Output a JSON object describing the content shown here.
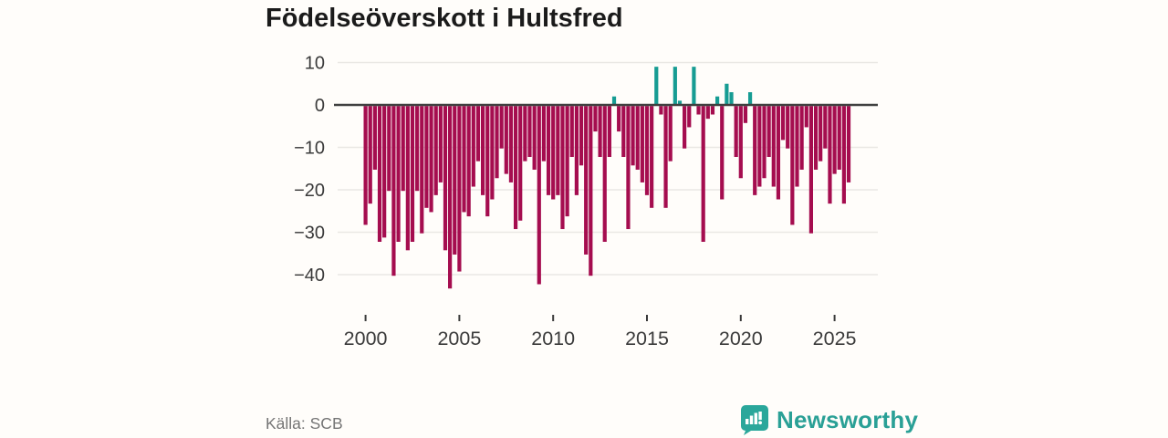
{
  "title": "Födelseöverskott i Hultsfred",
  "source": "Källa: SCB",
  "brand": {
    "name": "Newsworthy",
    "color": "#2aa096",
    "icon": "bar-chart-bubble-icon"
  },
  "colors": {
    "negative_bar": "#a50d4f",
    "positive_bar": "#169c93",
    "zero_axis": "#404040",
    "gridline": "#eae8e4",
    "tick_text": "#3a3a3a",
    "background": "#fffdfa"
  },
  "chart_data": {
    "type": "bar",
    "title": "Födelseöverskott i Hultsfred",
    "xlabel": "",
    "ylabel": "",
    "x_unit": "quarter",
    "grid": true,
    "legend": false,
    "ylim": [
      -45,
      12
    ],
    "y_ticks": [
      10,
      0,
      -10,
      -20,
      -30,
      -40
    ],
    "x_ticks": [
      2000,
      2005,
      2010,
      2015,
      2020,
      2025
    ],
    "categories": [
      "2000 Q1",
      "2000 Q2",
      "2000 Q3",
      "2000 Q4",
      "2001 Q1",
      "2001 Q2",
      "2001 Q3",
      "2001 Q4",
      "2002 Q1",
      "2002 Q2",
      "2002 Q3",
      "2002 Q4",
      "2003 Q1",
      "2003 Q2",
      "2003 Q3",
      "2003 Q4",
      "2004 Q1",
      "2004 Q2",
      "2004 Q3",
      "2004 Q4",
      "2005 Q1",
      "2005 Q2",
      "2005 Q3",
      "2005 Q4",
      "2006 Q1",
      "2006 Q2",
      "2006 Q3",
      "2006 Q4",
      "2007 Q1",
      "2007 Q2",
      "2007 Q3",
      "2007 Q4",
      "2008 Q1",
      "2008 Q2",
      "2008 Q3",
      "2008 Q4",
      "2009 Q1",
      "2009 Q2",
      "2009 Q3",
      "2009 Q4",
      "2010 Q1",
      "2010 Q2",
      "2010 Q3",
      "2010 Q4",
      "2011 Q1",
      "2011 Q2",
      "2011 Q3",
      "2011 Q4",
      "2012 Q1",
      "2012 Q2",
      "2012 Q3",
      "2012 Q4",
      "2013 Q1",
      "2013 Q2",
      "2013 Q3",
      "2013 Q4",
      "2014 Q1",
      "2014 Q2",
      "2014 Q3",
      "2014 Q4",
      "2015 Q1",
      "2015 Q2",
      "2015 Q3",
      "2015 Q4",
      "2016 Q1",
      "2016 Q2",
      "2016 Q3",
      "2016 Q4",
      "2017 Q1",
      "2017 Q2",
      "2017 Q3",
      "2017 Q4",
      "2018 Q1",
      "2018 Q2",
      "2018 Q3",
      "2018 Q4",
      "2019 Q1",
      "2019 Q2",
      "2019 Q3",
      "2019 Q4",
      "2020 Q1",
      "2020 Q2",
      "2020 Q3",
      "2020 Q4",
      "2021 Q1",
      "2021 Q2",
      "2021 Q3",
      "2021 Q4",
      "2022 Q1",
      "2022 Q2",
      "2022 Q3",
      "2022 Q4",
      "2023 Q1",
      "2023 Q2",
      "2023 Q3",
      "2023 Q4",
      "2024 Q1",
      "2024 Q2",
      "2024 Q3",
      "2024 Q4",
      "2025 Q1",
      "2025 Q2",
      "2025 Q3",
      "2025 Q4"
    ],
    "values": [
      -28,
      -23,
      -15,
      -32,
      -31,
      -20,
      -40,
      -32,
      -20,
      -34,
      -32,
      -20,
      -30,
      -24,
      -25,
      -21,
      -18,
      -34,
      -43,
      -35,
      -39,
      -25,
      -26,
      -19,
      -13,
      -21,
      -26,
      -22,
      -17,
      -10,
      -16,
      -18,
      -29,
      -27,
      -13,
      -12,
      -15,
      -42,
      -13,
      -21,
      -22,
      -21,
      -29,
      -26,
      -12,
      -21,
      -14,
      -35,
      -40,
      -6,
      -12,
      -32,
      -12,
      2,
      -6,
      -12,
      -29,
      -14,
      -15,
      -18,
      -21,
      -24,
      9,
      -2,
      -24,
      -13,
      9,
      1,
      -10,
      -5,
      9,
      -2,
      -32,
      -3,
      -2,
      2,
      -22,
      5,
      3,
      -12,
      -17,
      -4,
      3,
      -21,
      -19,
      -17,
      -12,
      -19,
      -22,
      -8,
      -10,
      -28,
      -19,
      -15,
      -5,
      -30,
      -15,
      -13,
      -10,
      -23,
      -16,
      -15,
      -23,
      -18
    ]
  }
}
